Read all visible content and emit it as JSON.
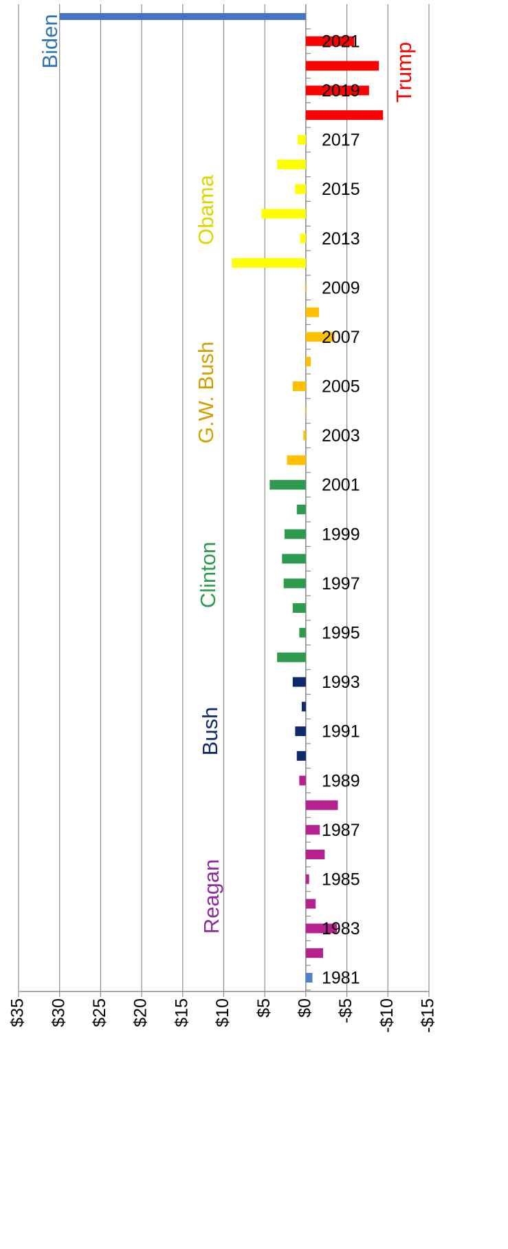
{
  "chart_data": {
    "type": "bar",
    "orientation": "horizontal",
    "categories": [
      "1981",
      null,
      "1983",
      null,
      "1985",
      null,
      "1987",
      null,
      "1989",
      null,
      "1991",
      null,
      "1993",
      null,
      "1995",
      null,
      "1997",
      null,
      "1999",
      null,
      "2001",
      null,
      "2003",
      null,
      "2005",
      null,
      "2007",
      null,
      "2009",
      null,
      "2013",
      null,
      "2015",
      null,
      "2017",
      null,
      "2019",
      null,
      "2021",
      null
    ],
    "values": [
      -0.8,
      -2.1,
      -3.8,
      -1.2,
      -0.4,
      -2.3,
      -1.7,
      -3.9,
      0.8,
      1.1,
      1.3,
      0.5,
      1.6,
      3.5,
      0.8,
      1.6,
      2.7,
      2.9,
      2.6,
      1.1,
      4.4,
      2.3,
      0.3,
      0.1,
      1.6,
      -0.6,
      -3.5,
      -1.6,
      0.1,
      9.0,
      0.7,
      5.4,
      1.3,
      3.5,
      1.0,
      -9.4,
      -7.7,
      -8.9,
      -5.9,
      30
    ],
    "colors": [
      "#4f81d0",
      "#b5218e",
      "#b5218e",
      "#b5218e",
      "#b5218e",
      "#b5218e",
      "#b5218e",
      "#b5218e",
      "#b5218e",
      "#0d2a6b",
      "#0d2a6b",
      "#0d2a6b",
      "#0d2a6b",
      "#2e9a4e",
      "#2e9a4e",
      "#2e9a4e",
      "#2e9a4e",
      "#2e9a4e",
      "#2e9a4e",
      "#2e9a4e",
      "#2e9a4e",
      "#ffc000",
      "#ffc000",
      "#ffc000",
      "#ffc000",
      "#ffc000",
      "#ffc000",
      "#ffc000",
      "#ffc000",
      "#ffff00",
      "#ffff00",
      "#ffff00",
      "#ffff00",
      "#ffff00",
      "#ffff00",
      "#ff0000",
      "#ff0000",
      "#ff0000",
      "#ff0000",
      "#4472c4"
    ],
    "xlim": [
      35,
      -15
    ],
    "xticks": [
      {
        "value": 35,
        "label": "$35"
      },
      {
        "value": 30,
        "label": "$30"
      },
      {
        "value": 25,
        "label": "$25"
      },
      {
        "value": 20,
        "label": "$20"
      },
      {
        "value": 15,
        "label": "$15"
      },
      {
        "value": 10,
        "label": "$10"
      },
      {
        "value": 5,
        "label": "$5"
      },
      {
        "value": 0,
        "label": "$0"
      },
      {
        "value": -5,
        "label": "-$5"
      },
      {
        "value": -10,
        "label": "-$10"
      },
      {
        "value": -15,
        "label": "-$15"
      }
    ],
    "grid": true,
    "annotations": [
      {
        "text": "Biden",
        "color": "#2e75b6"
      },
      {
        "text": "Trump",
        "color": "#ff0000"
      },
      {
        "text": "Obama",
        "color": "#e0d400"
      },
      {
        "text": "G.W. Bush",
        "color": "#d4a000"
      },
      {
        "text": "Clinton",
        "color": "#2e9a4e"
      },
      {
        "text": "Bush",
        "color": "#0d2a6b"
      },
      {
        "text": "Reagan",
        "color": "#8e2a9e"
      }
    ]
  }
}
